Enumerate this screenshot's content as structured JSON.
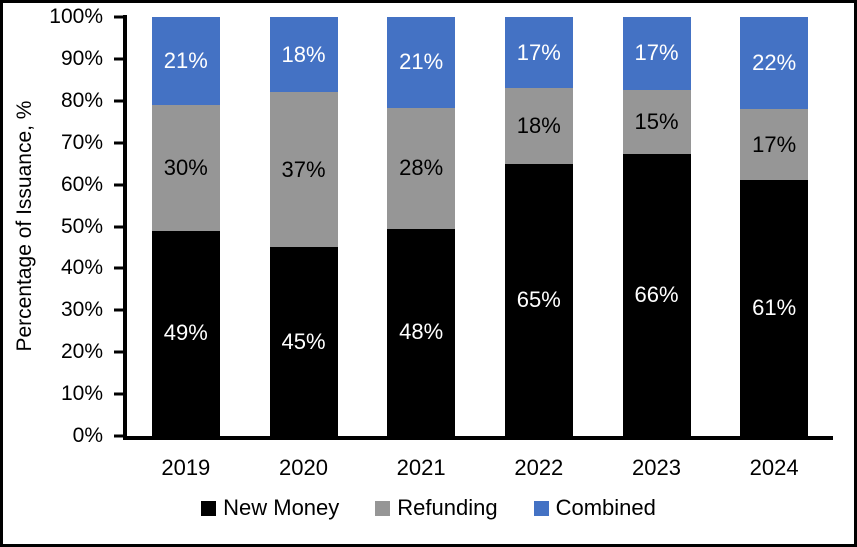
{
  "chart_data": {
    "type": "bar",
    "subtype": "stacked-100",
    "title": "",
    "xlabel": "",
    "ylabel": "Percentage of Issuance, %",
    "categories": [
      "2019",
      "2020",
      "2021",
      "2022",
      "2023",
      "2024"
    ],
    "series": [
      {
        "name": "New Money",
        "color": "#000000",
        "label_color": "#FFFFFF",
        "values": [
          49,
          45,
          48,
          65,
          66,
          61
        ]
      },
      {
        "name": "Refunding",
        "color": "#969696",
        "label_color": "#000000",
        "values": [
          30,
          37,
          28,
          18,
          15,
          17
        ]
      },
      {
        "name": "Combined",
        "color": "#4472C4",
        "label_color": "#FFFFFF",
        "values": [
          21,
          18,
          21,
          17,
          17,
          22
        ]
      }
    ],
    "value_suffix": "%",
    "yticks": [
      "0%",
      "10%",
      "20%",
      "30%",
      "40%",
      "50%",
      "60%",
      "70%",
      "80%",
      "90%",
      "100%"
    ],
    "ylim": [
      0,
      100
    ],
    "grid": false,
    "legend_position": "bottom"
  }
}
